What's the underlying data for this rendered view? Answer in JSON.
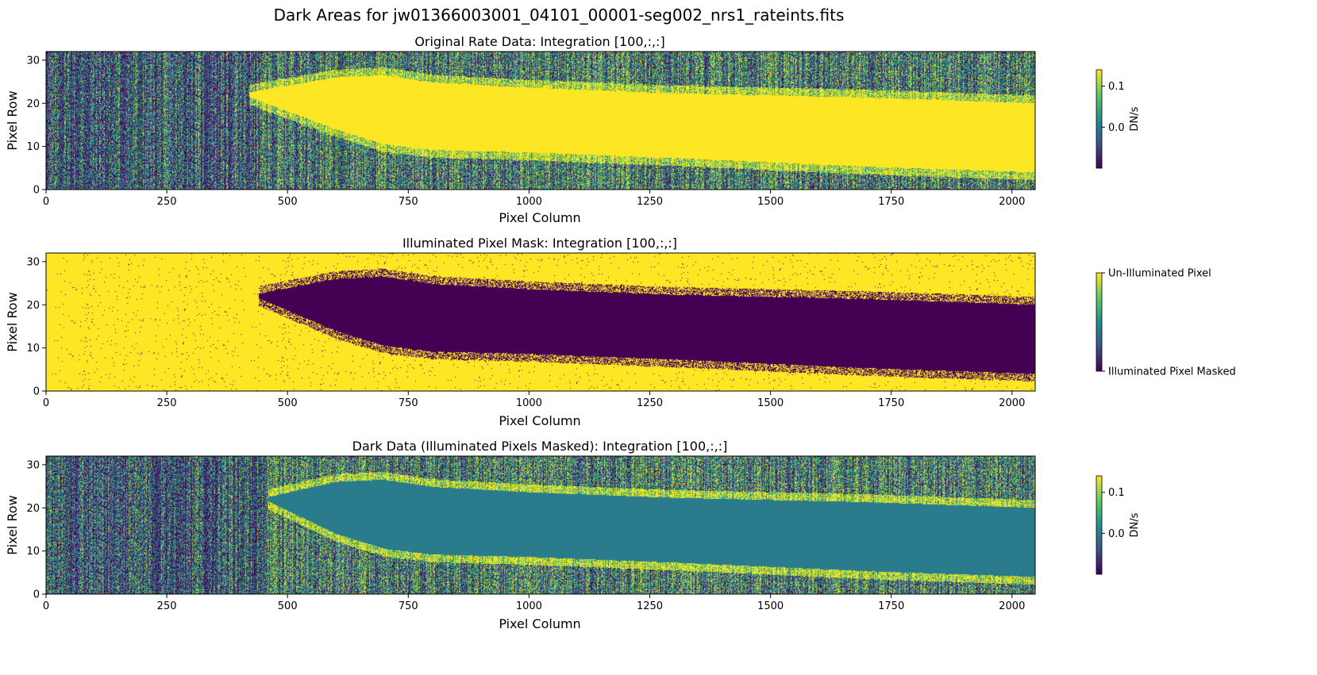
{
  "figure": {
    "suptitle": "Dark Areas for jw01366003001_04101_00001-seg002_nrs1_rateints.fits"
  },
  "colors": {
    "viridis_dark": "#440154",
    "viridis_mid": "#21918c",
    "viridis_yellow": "#fde725",
    "masked_teal": "#2a7b8c"
  },
  "chart_data": [
    {
      "type": "heatmap",
      "title": "Original Rate Data: Integration [100,:,:]",
      "xlabel": "Pixel Column",
      "ylabel": "Pixel Row",
      "xlim": [
        0,
        2048
      ],
      "ylim": [
        0,
        32
      ],
      "xticks": [
        0,
        250,
        500,
        750,
        1000,
        1250,
        1500,
        1750,
        2000
      ],
      "yticks": [
        0,
        10,
        20,
        30
      ],
      "colormap": "viridis",
      "mode": "rate",
      "colorbar": {
        "label": "DN/s",
        "ticks": [
          "0.1",
          "0.0"
        ],
        "tick_values": [
          0.1,
          0.0
        ],
        "vmin": -0.1,
        "vmax": 0.14
      },
      "trace": {
        "start_column": 420,
        "center_points": [
          [
            420,
            22
          ],
          [
            600,
            20
          ],
          [
            800,
            17
          ],
          [
            1250,
            15
          ],
          [
            2048,
            12
          ]
        ],
        "half_width_points": [
          [
            420,
            0.5
          ],
          [
            600,
            6
          ],
          [
            700,
            8
          ],
          [
            1000,
            7.5
          ],
          [
            1300,
            7.5
          ],
          [
            1700,
            8
          ],
          [
            2048,
            8
          ]
        ]
      }
    },
    {
      "type": "heatmap",
      "title": "Illuminated Pixel Mask: Integration [100,:,:]",
      "xlabel": "Pixel Column",
      "ylabel": "Pixel Row",
      "xlim": [
        0,
        2048
      ],
      "ylim": [
        0,
        32
      ],
      "xticks": [
        0,
        250,
        500,
        750,
        1000,
        1250,
        1500,
        1750,
        2000
      ],
      "yticks": [
        0,
        10,
        20,
        30
      ],
      "colormap": "viridis",
      "mode": "mask",
      "colorbar": {
        "label": "",
        "ticks": [
          "Un-Illuminated Pixel",
          "Illuminated Pixel Masked"
        ],
        "tick_values": [
          1,
          0
        ],
        "vmin": 0,
        "vmax": 1
      },
      "trace": {
        "start_column": 440,
        "center_points": [
          [
            440,
            22
          ],
          [
            600,
            20
          ],
          [
            800,
            17
          ],
          [
            1250,
            15
          ],
          [
            2048,
            12
          ]
        ],
        "half_width_points": [
          [
            440,
            0.5
          ],
          [
            600,
            6
          ],
          [
            700,
            8
          ],
          [
            1000,
            7.5
          ],
          [
            1300,
            7.5
          ],
          [
            1700,
            8
          ],
          [
            2048,
            8
          ]
        ]
      }
    },
    {
      "type": "heatmap",
      "title": "Dark Data (Illuminated Pixels Masked): Integration [100,:,:]",
      "xlabel": "Pixel Column",
      "ylabel": "Pixel Row",
      "xlim": [
        0,
        2048
      ],
      "ylim": [
        0,
        32
      ],
      "xticks": [
        0,
        250,
        500,
        750,
        1000,
        1250,
        1500,
        1750,
        2000
      ],
      "yticks": [
        0,
        10,
        20,
        30
      ],
      "colormap": "viridis",
      "mode": "masked",
      "colorbar": {
        "label": "DN/s",
        "ticks": [
          "0.1",
          "0.0"
        ],
        "tick_values": [
          0.1,
          0.0
        ],
        "vmin": -0.1,
        "vmax": 0.14
      },
      "trace": {
        "start_column": 460,
        "center_points": [
          [
            460,
            22
          ],
          [
            600,
            20
          ],
          [
            800,
            17
          ],
          [
            1250,
            15
          ],
          [
            2048,
            12
          ]
        ],
        "half_width_points": [
          [
            460,
            0.5
          ],
          [
            600,
            6
          ],
          [
            700,
            8
          ],
          [
            1000,
            7.5
          ],
          [
            1300,
            7.5
          ],
          [
            1700,
            8
          ],
          [
            2048,
            8
          ]
        ]
      }
    }
  ]
}
